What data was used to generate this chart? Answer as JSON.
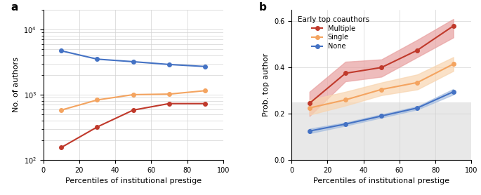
{
  "panel_a": {
    "x": [
      10,
      30,
      50,
      70,
      90
    ],
    "blue_y": [
      4700,
      3500,
      3200,
      2900,
      2700
    ],
    "orange_y": [
      580,
      830,
      1000,
      1020,
      1150
    ],
    "red_y": [
      155,
      320,
      580,
      730,
      730
    ],
    "blue_color": "#4472c4",
    "orange_color": "#f4a460",
    "red_color": "#c0392b",
    "xlabel": "Percentiles of institutional prestige",
    "ylabel": "No. of authors",
    "xlim": [
      0,
      100
    ],
    "ylim_log": [
      100,
      20000
    ]
  },
  "panel_b": {
    "x": [
      10,
      30,
      50,
      70,
      90
    ],
    "red_y": [
      0.245,
      0.375,
      0.4,
      0.475,
      0.58
    ],
    "red_lo": [
      0.19,
      0.34,
      0.36,
      0.445,
      0.53
    ],
    "red_hi": [
      0.295,
      0.425,
      0.435,
      0.52,
      0.61
    ],
    "orange_y": [
      0.225,
      0.26,
      0.305,
      0.335,
      0.415
    ],
    "orange_lo": [
      0.195,
      0.235,
      0.28,
      0.305,
      0.385
    ],
    "orange_hi": [
      0.26,
      0.295,
      0.335,
      0.37,
      0.445
    ],
    "blue_y": [
      0.125,
      0.155,
      0.19,
      0.225,
      0.295
    ],
    "blue_lo": [
      0.115,
      0.148,
      0.183,
      0.218,
      0.283
    ],
    "blue_hi": [
      0.135,
      0.162,
      0.197,
      0.232,
      0.307
    ],
    "red_color": "#c0392b",
    "orange_color": "#f4a460",
    "blue_color": "#4472c4",
    "red_fill": "#e8a0a0",
    "orange_fill": "#f8d5b0",
    "blue_fill": "#a8bfe0",
    "xlabel": "Percentiles of institutional prestige",
    "ylabel": "Prob. top author",
    "xlim": [
      0,
      100
    ],
    "ylim": [
      0.0,
      0.65
    ],
    "yticks": [
      0.0,
      0.2,
      0.4,
      0.6
    ],
    "shade_y": 0.25,
    "legend_title": "Early top coauthors",
    "legend_labels": [
      "Multiple",
      "Single",
      "None"
    ]
  }
}
